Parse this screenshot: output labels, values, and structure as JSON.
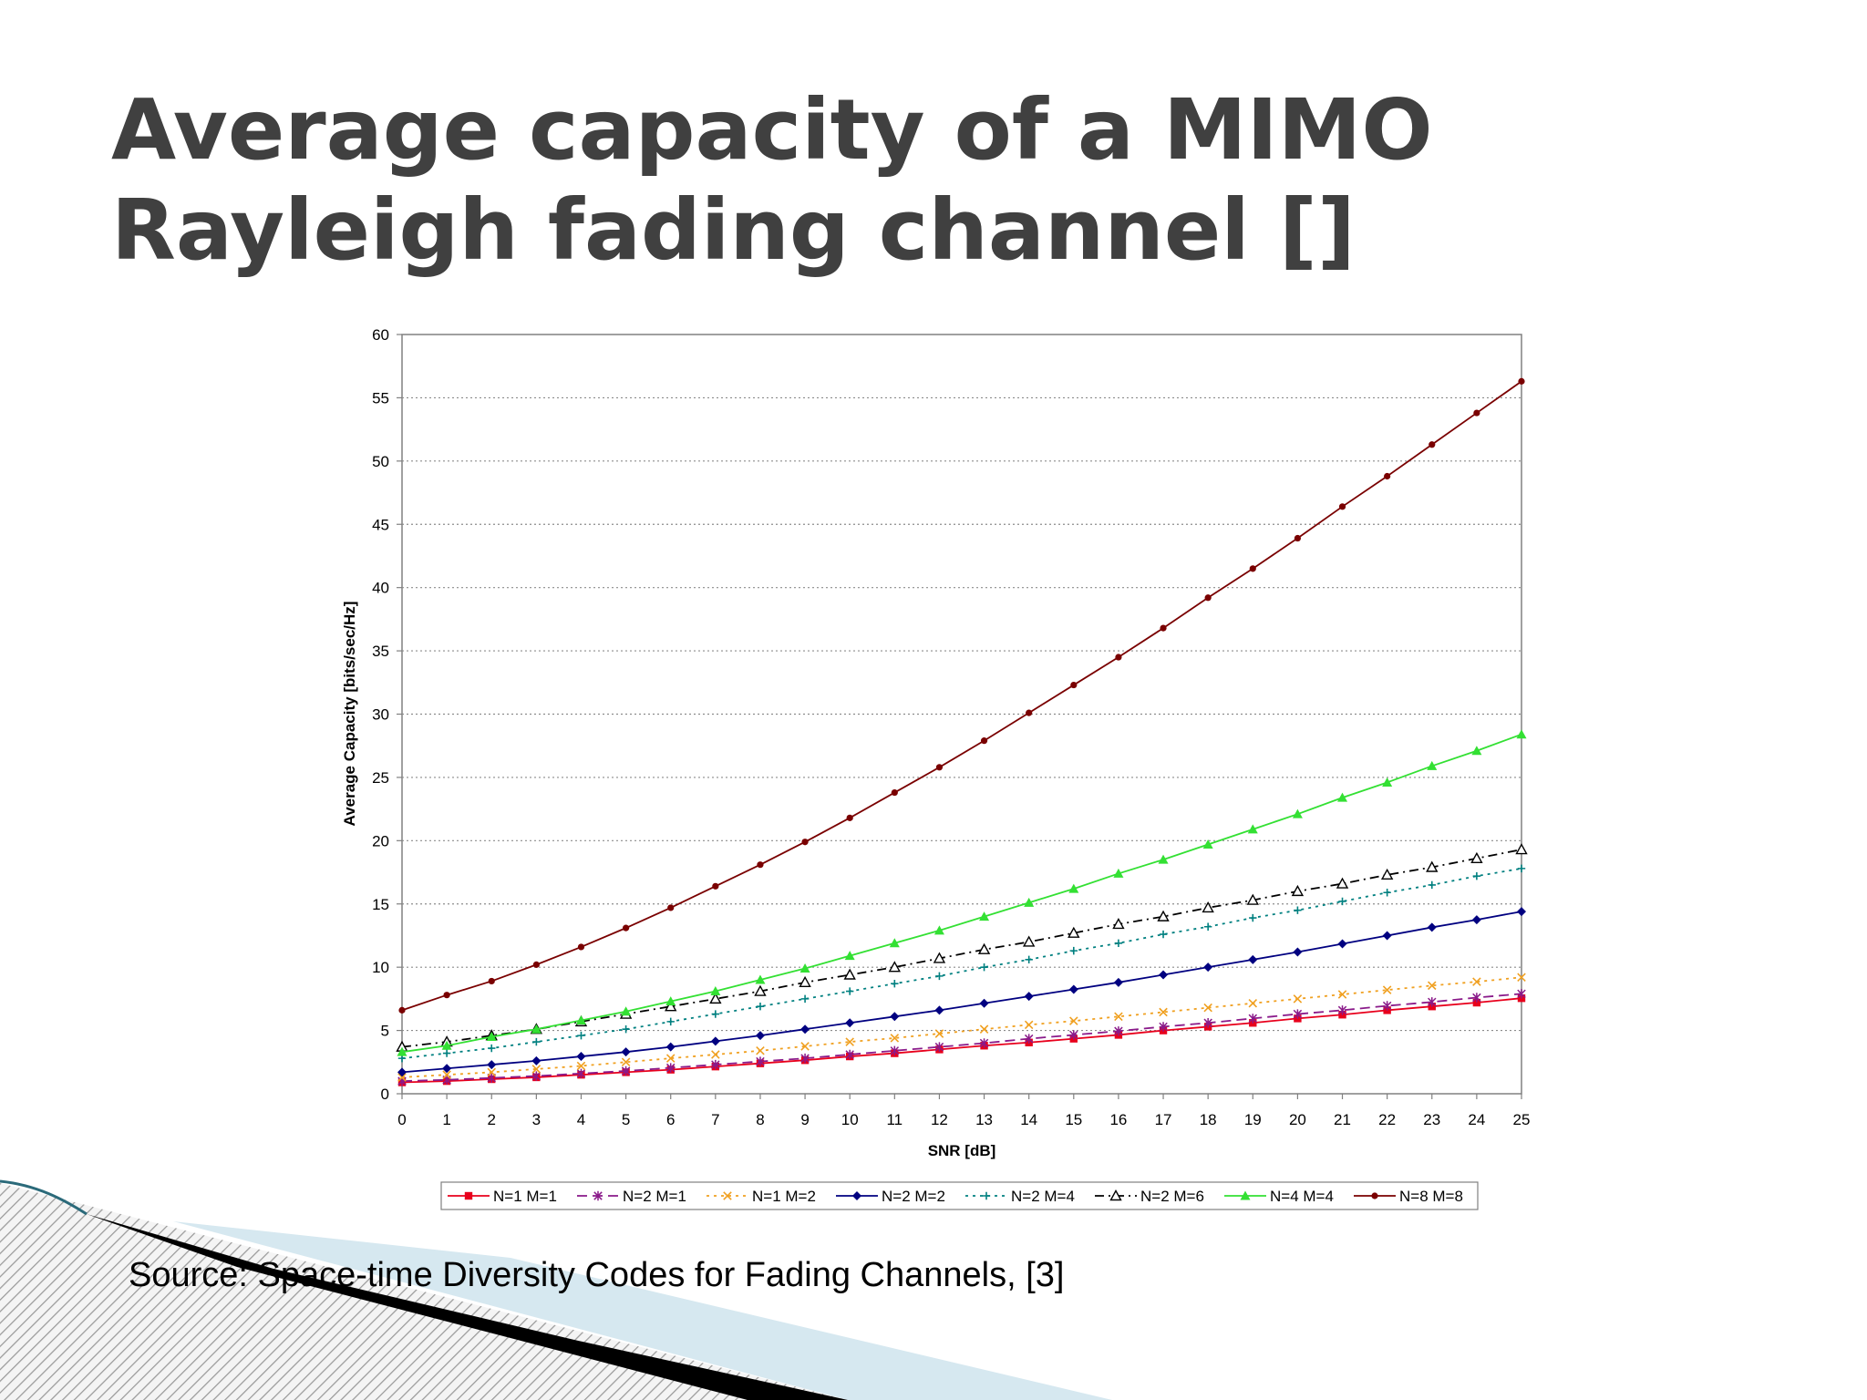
{
  "slide": {
    "title": "Average capacity of a MIMO Rayleigh fading channel []",
    "source_note": "Source: Space-time Diversity Codes for Fading Channels, [3]"
  },
  "chart_data": {
    "type": "line",
    "xlabel": "SNR [dB]",
    "ylabel": "Average Capacity [bits/sec/Hz]",
    "xlim": [
      0,
      25
    ],
    "ylim": [
      0,
      60
    ],
    "xticks": [
      0,
      1,
      2,
      3,
      4,
      5,
      6,
      7,
      8,
      9,
      10,
      11,
      12,
      13,
      14,
      15,
      16,
      17,
      18,
      19,
      20,
      21,
      22,
      23,
      24,
      25
    ],
    "yticks": [
      0,
      5,
      10,
      15,
      20,
      25,
      30,
      35,
      40,
      45,
      50,
      55,
      60
    ],
    "grid": "horizontal dotted",
    "legend_position": "bottom",
    "x": [
      0,
      1,
      2,
      3,
      4,
      5,
      6,
      7,
      8,
      9,
      10,
      11,
      12,
      13,
      14,
      15,
      16,
      17,
      18,
      19,
      20,
      21,
      22,
      23,
      24,
      25
    ],
    "series": [
      {
        "name": "N=1 M=1",
        "color": "#e8001c",
        "marker": "square",
        "dash": "solid",
        "values": [
          0.9,
          1.0,
          1.15,
          1.3,
          1.5,
          1.7,
          1.9,
          2.15,
          2.4,
          2.65,
          2.95,
          3.2,
          3.5,
          3.8,
          4.05,
          4.35,
          4.65,
          5.0,
          5.3,
          5.6,
          5.95,
          6.25,
          6.6,
          6.9,
          7.2,
          7.55
        ]
      },
      {
        "name": "N=2 M=1",
        "color": "#8a1a8a",
        "marker": "star",
        "dash": "long-dash",
        "values": [
          1.0,
          1.1,
          1.25,
          1.4,
          1.6,
          1.8,
          2.05,
          2.3,
          2.55,
          2.8,
          3.1,
          3.4,
          3.7,
          4.0,
          4.35,
          4.65,
          4.95,
          5.3,
          5.6,
          5.95,
          6.3,
          6.6,
          6.95,
          7.25,
          7.6,
          7.9
        ]
      },
      {
        "name": "N=1 M=2",
        "color": "#f0a020",
        "marker": "x",
        "dash": "dotted",
        "values": [
          1.3,
          1.5,
          1.7,
          1.95,
          2.2,
          2.5,
          2.8,
          3.1,
          3.4,
          3.75,
          4.1,
          4.4,
          4.75,
          5.1,
          5.45,
          5.75,
          6.1,
          6.45,
          6.8,
          7.15,
          7.5,
          7.85,
          8.2,
          8.55,
          8.85,
          9.2
        ]
      },
      {
        "name": "N=2 M=2",
        "color": "#000080",
        "marker": "diamond",
        "dash": "solid",
        "values": [
          1.7,
          2.0,
          2.3,
          2.6,
          2.95,
          3.3,
          3.7,
          4.15,
          4.6,
          5.1,
          5.6,
          6.1,
          6.6,
          7.15,
          7.7,
          8.25,
          8.8,
          9.4,
          10.0,
          10.6,
          11.2,
          11.85,
          12.5,
          13.15,
          13.75,
          14.4
        ]
      },
      {
        "name": "N=2 M=4",
        "color": "#008080",
        "marker": "plus",
        "dash": "dotted",
        "values": [
          2.8,
          3.2,
          3.6,
          4.1,
          4.6,
          5.1,
          5.7,
          6.3,
          6.9,
          7.5,
          8.1,
          8.7,
          9.3,
          10.0,
          10.6,
          11.3,
          11.9,
          12.6,
          13.2,
          13.9,
          14.5,
          15.2,
          15.9,
          16.5,
          17.2,
          17.8
        ]
      },
      {
        "name": "N=2 M=6",
        "color": "#000000",
        "marker": "triangle-open",
        "dash": "dash-dot",
        "values": [
          3.7,
          4.1,
          4.6,
          5.1,
          5.7,
          6.3,
          6.9,
          7.5,
          8.1,
          8.8,
          9.4,
          10.0,
          10.7,
          11.4,
          12.0,
          12.7,
          13.4,
          14.0,
          14.7,
          15.3,
          16.0,
          16.6,
          17.3,
          17.9,
          18.6,
          19.3
        ]
      },
      {
        "name": "N=4 M=4",
        "color": "#33e033",
        "marker": "triangle",
        "dash": "solid",
        "values": [
          3.3,
          3.8,
          4.5,
          5.1,
          5.8,
          6.5,
          7.3,
          8.1,
          9.0,
          9.9,
          10.9,
          11.9,
          12.9,
          14.0,
          15.1,
          16.2,
          17.4,
          18.5,
          19.7,
          20.9,
          22.1,
          23.4,
          24.6,
          25.9,
          27.1,
          28.4
        ]
      },
      {
        "name": "N=8 M=8",
        "color": "#7a0000",
        "marker": "circle",
        "dash": "solid",
        "values": [
          6.6,
          7.8,
          8.9,
          10.2,
          11.6,
          13.1,
          14.7,
          16.4,
          18.1,
          19.9,
          21.8,
          23.8,
          25.8,
          27.9,
          30.1,
          32.3,
          34.5,
          36.8,
          39.2,
          41.5,
          43.9,
          46.4,
          48.8,
          51.3,
          53.8,
          56.3
        ]
      }
    ]
  }
}
